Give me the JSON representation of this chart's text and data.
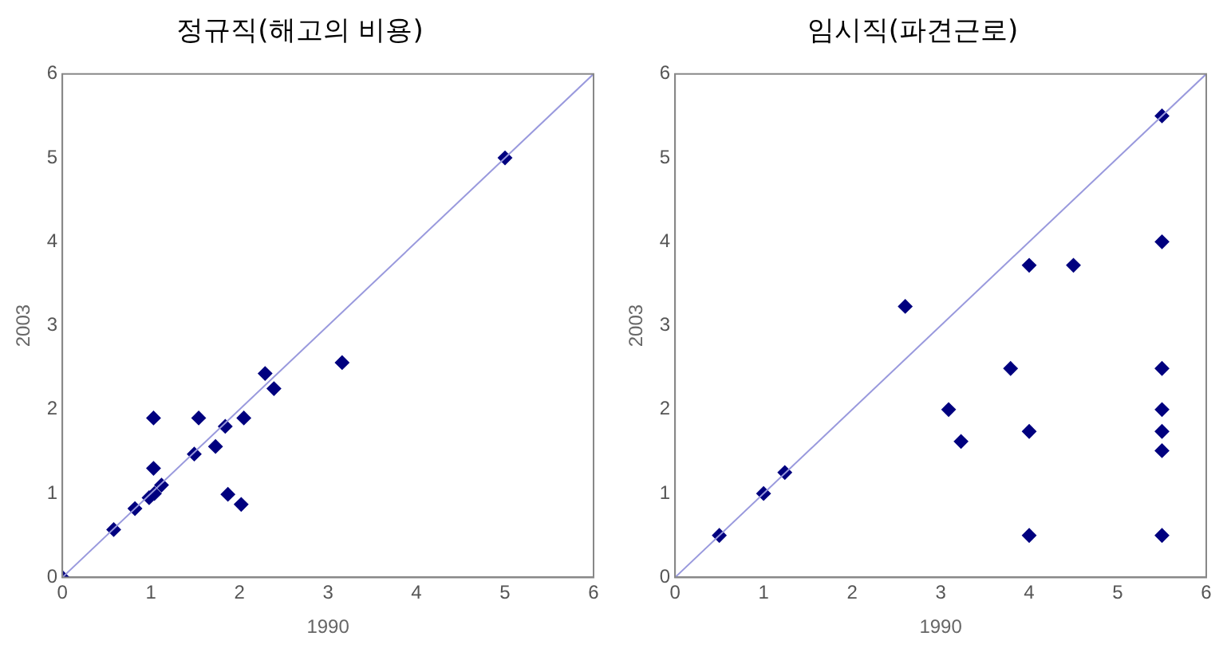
{
  "chart_data": [
    {
      "type": "scatter",
      "title": "정규직(해고의 비용)",
      "xlabel": "1990",
      "ylabel": "2003",
      "xlim": [
        0,
        6
      ],
      "ylim": [
        0,
        6
      ],
      "xticks": [
        0,
        1,
        2,
        3,
        4,
        5,
        6
      ],
      "yticks": [
        0,
        1,
        2,
        3,
        4,
        5,
        6
      ],
      "grid": false,
      "legend": false,
      "series": [
        {
          "type": "line",
          "color": "#9999dd",
          "marker": "none",
          "x": [
            0,
            6
          ],
          "values": [
            0,
            6
          ]
        },
        {
          "color": "#00007f",
          "marker": "diamond",
          "x": [
            0,
            0.58,
            0.82,
            0.98,
            1.04,
            1.12,
            1.03,
            1.03,
            1.54,
            1.49,
            1.73,
            1.84,
            1.87,
            2.02,
            2.05,
            2.29,
            2.39,
            3.16,
            5.0
          ],
          "values": [
            0,
            0.57,
            0.82,
            0.95,
            1.0,
            1.1,
            1.3,
            1.9,
            1.9,
            1.47,
            1.56,
            1.8,
            0.99,
            0.87,
            1.9,
            2.43,
            2.25,
            2.56,
            5.0
          ]
        }
      ]
    },
    {
      "type": "scatter",
      "title": "임시직(파견근로)",
      "xlabel": "1990",
      "ylabel": "2003",
      "xlim": [
        0,
        6
      ],
      "ylim": [
        0,
        6
      ],
      "xticks": [
        0,
        1,
        2,
        3,
        4,
        5,
        6
      ],
      "yticks": [
        0,
        1,
        2,
        3,
        4,
        5,
        6
      ],
      "grid": false,
      "legend": false,
      "series": [
        {
          "type": "line",
          "color": "#9999dd",
          "marker": "none",
          "x": [
            0,
            6
          ],
          "values": [
            0,
            6
          ]
        },
        {
          "color": "#00007f",
          "marker": "diamond",
          "x": [
            0.5,
            1.0,
            1.24,
            2.6,
            3.09,
            3.23,
            3.79,
            4.0,
            4.5,
            4.0,
            4.0,
            5.5,
            5.5,
            5.5,
            5.5,
            5.5,
            5.5,
            5.5
          ],
          "values": [
            0.5,
            1.0,
            1.25,
            3.23,
            2.0,
            1.62,
            2.49,
            3.72,
            3.72,
            1.74,
            0.5,
            5.5,
            4.0,
            2.49,
            2.0,
            1.74,
            1.51,
            0.5
          ]
        }
      ]
    }
  ]
}
